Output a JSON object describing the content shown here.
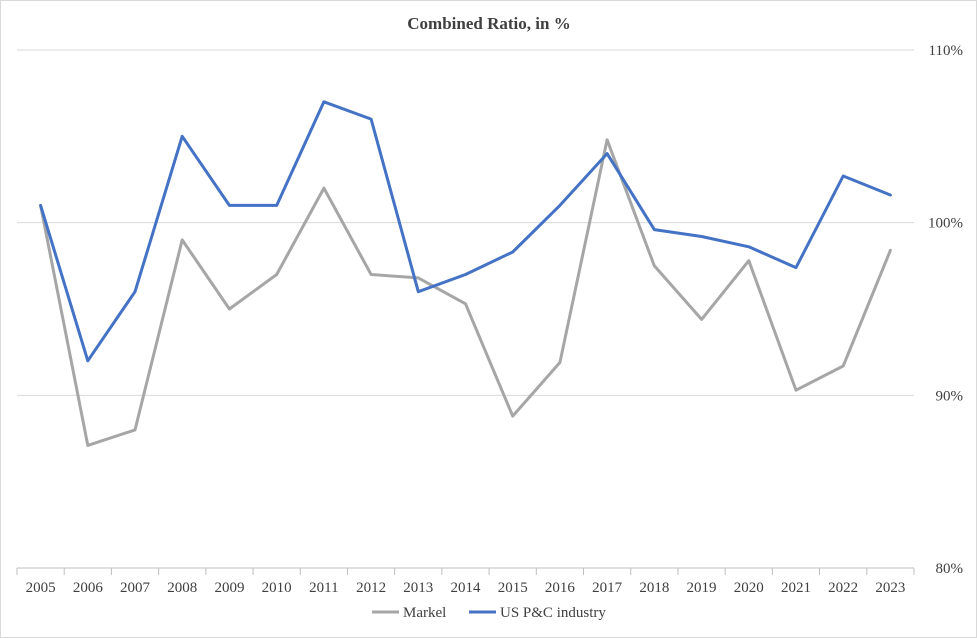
{
  "chart_data": {
    "type": "line",
    "title": "Combined Ratio, in %",
    "xlabel": "",
    "ylabel": "",
    "categories": [
      "2005",
      "2006",
      "2007",
      "2008",
      "2009",
      "2010",
      "2011",
      "2012",
      "2013",
      "2014",
      "2015",
      "2016",
      "2017",
      "2018",
      "2019",
      "2020",
      "2021",
      "2022",
      "2023"
    ],
    "ylim": [
      80,
      110
    ],
    "yticks": [
      80,
      90,
      100,
      110
    ],
    "ytick_labels": [
      "80%",
      "90%",
      "100%",
      "110%"
    ],
    "y_axis_side": "right",
    "grid": "horizontal",
    "legend_position": "bottom",
    "series": [
      {
        "name": "Markel",
        "color": "#a6a6a6",
        "values": [
          101,
          87.1,
          88,
          99,
          95,
          97,
          102,
          97,
          96.8,
          95.3,
          88.8,
          91.9,
          104.8,
          97.5,
          94.4,
          97.8,
          90.3,
          91.7,
          98.4
        ]
      },
      {
        "name": "US P&C industry",
        "color": "#4472c4",
        "values": [
          101,
          92,
          96,
          105,
          101,
          101,
          107,
          106,
          96,
          97,
          98.3,
          101,
          104,
          99.6,
          99.2,
          98.6,
          97.4,
          102.7,
          101.6
        ]
      }
    ]
  }
}
